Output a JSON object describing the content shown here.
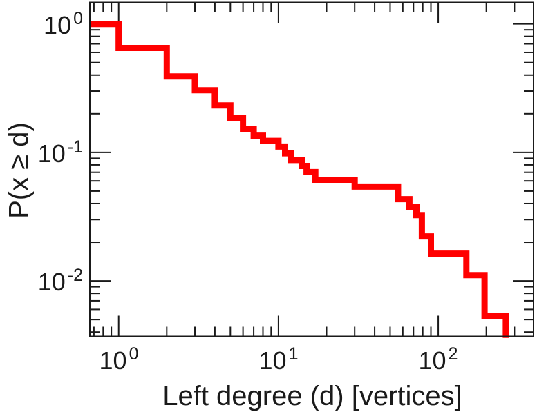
{
  "figure": {
    "x_axis_label": "Left degree (d) [vertices]",
    "y_axis_label": "P(x ≥ d)",
    "axis_color": "#1a1a1a",
    "curve_color": "#ff0000"
  },
  "chart_data": {
    "type": "line",
    "subtype": "step-ccdf",
    "title": "",
    "xlabel": "Left degree (d) [vertices]",
    "ylabel": "P(x ≥ d)",
    "xscale": "log",
    "yscale": "log",
    "xlim": [
      0.66,
      395
    ],
    "ylim": [
      0.0037,
      1.47
    ],
    "grid": false,
    "legend": null,
    "x_major_ticks": [
      {
        "base": "10",
        "exp": "0",
        "value": 1
      },
      {
        "base": "10",
        "exp": "1",
        "value": 10
      },
      {
        "base": "10",
        "exp": "2",
        "value": 100
      }
    ],
    "y_major_ticks": [
      {
        "base": "10",
        "exp": "0",
        "value": 1
      },
      {
        "base": "10",
        "exp": "-1",
        "value": 0.1
      },
      {
        "base": "10",
        "exp": "-2",
        "value": 0.01
      }
    ],
    "x_minor_ticks": [
      0.7,
      0.8,
      0.9,
      2,
      3,
      4,
      5,
      6,
      7,
      8,
      9,
      20,
      30,
      40,
      50,
      60,
      70,
      80,
      90,
      200,
      300
    ],
    "y_minor_ticks": [
      0.9,
      0.8,
      0.7,
      0.6,
      0.5,
      0.4,
      0.3,
      0.2,
      0.09,
      0.08,
      0.07,
      0.06,
      0.05,
      0.04,
      0.03,
      0.02,
      0.009,
      0.008,
      0.007,
      0.006,
      0.005,
      0.004
    ],
    "series": [
      {
        "name": "left-degree-ccdf",
        "color": "#ff0000",
        "line_width": 9,
        "step_levels_d_P": [
          [
            0.66,
            1.0
          ],
          [
            1,
            0.65
          ],
          [
            2,
            0.39
          ],
          [
            3,
            0.305
          ],
          [
            4,
            0.232
          ],
          [
            5,
            0.186
          ],
          [
            6,
            0.153
          ],
          [
            7,
            0.135
          ],
          [
            8,
            0.123
          ],
          [
            10,
            0.111
          ],
          [
            11,
            0.0985
          ],
          [
            12,
            0.0873
          ],
          [
            14,
            0.0785
          ],
          [
            15,
            0.0703
          ],
          [
            17,
            0.0613
          ],
          [
            30,
            0.0542
          ],
          [
            56,
            0.0433
          ],
          [
            66,
            0.0375
          ],
          [
            73,
            0.0325
          ],
          [
            79,
            0.0222
          ],
          [
            90,
            0.0163
          ],
          [
            150,
            0.0111
          ],
          [
            195,
            0.0053
          ],
          [
            265,
            0.0036
          ]
        ]
      }
    ]
  }
}
